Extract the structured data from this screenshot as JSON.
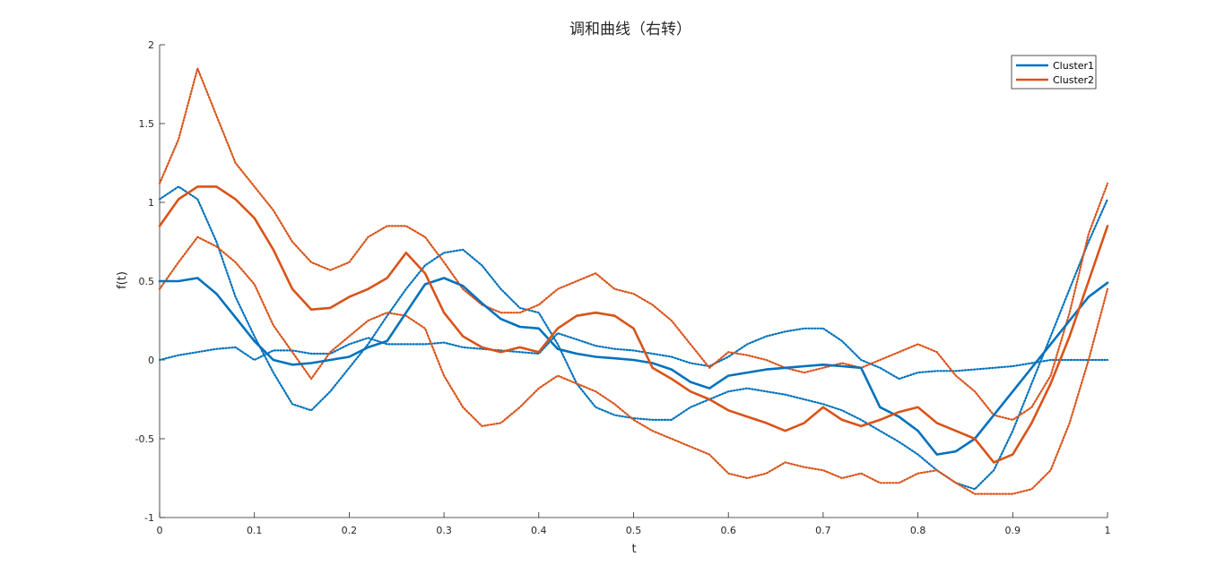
{
  "chart_data": {
    "type": "line",
    "title": "调和曲线（右转）",
    "xlabel": "t",
    "ylabel": "f(t)",
    "xlim": [
      0,
      1
    ],
    "ylim": [
      -1,
      2
    ],
    "xticks": [
      "0",
      "0.1",
      "0.2",
      "0.3",
      "0.4",
      "0.5",
      "0.6",
      "0.7",
      "0.8",
      "0.9",
      "1"
    ],
    "yticks": [
      "-1",
      "-0.5",
      "0",
      "0.5",
      "1",
      "1.5",
      "2"
    ],
    "grid": false,
    "legend_position": "top-right",
    "colors": {
      "cluster1": "#0072BD",
      "cluster2": "#D95319"
    },
    "series": [
      {
        "name": "Cluster1",
        "style": "solid",
        "color": "#0072BD",
        "x": [
          0,
          0.02,
          0.04,
          0.06,
          0.08,
          0.1,
          0.12,
          0.14,
          0.16,
          0.18,
          0.2,
          0.22,
          0.24,
          0.26,
          0.28,
          0.3,
          0.32,
          0.34,
          0.36,
          0.38,
          0.4,
          0.42,
          0.44,
          0.46,
          0.48,
          0.5,
          0.52,
          0.54,
          0.56,
          0.58,
          0.6,
          0.62,
          0.64,
          0.66,
          0.68,
          0.7,
          0.72,
          0.74,
          0.76,
          0.78,
          0.8,
          0.82,
          0.84,
          0.86,
          0.88,
          0.9,
          0.92,
          0.94,
          0.96,
          0.98,
          1.0
        ],
        "y": [
          0.5,
          0.5,
          0.52,
          0.42,
          0.27,
          0.12,
          0.0,
          -0.03,
          -0.02,
          0.0,
          0.02,
          0.08,
          0.12,
          0.3,
          0.48,
          0.52,
          0.47,
          0.36,
          0.26,
          0.21,
          0.2,
          0.07,
          0.04,
          0.02,
          0.01,
          0.0,
          -0.02,
          -0.06,
          -0.14,
          -0.18,
          -0.1,
          -0.08,
          -0.06,
          -0.05,
          -0.04,
          -0.03,
          -0.04,
          -0.05,
          -0.3,
          -0.36,
          -0.45,
          -0.6,
          -0.58,
          -0.5,
          -0.35,
          -0.2,
          -0.05,
          0.1,
          0.25,
          0.4,
          0.49
        ]
      },
      {
        "name": "",
        "style": "dotted",
        "color": "#0072BD",
        "x": [
          0,
          0.02,
          0.04,
          0.06,
          0.08,
          0.1,
          0.12,
          0.14,
          0.16,
          0.18,
          0.2,
          0.22,
          0.24,
          0.26,
          0.28,
          0.3,
          0.32,
          0.34,
          0.36,
          0.38,
          0.4,
          0.42,
          0.44,
          0.46,
          0.48,
          0.5,
          0.52,
          0.54,
          0.56,
          0.58,
          0.6,
          0.62,
          0.64,
          0.66,
          0.68,
          0.7,
          0.72,
          0.74,
          0.76,
          0.78,
          0.8,
          0.82,
          0.84,
          0.86,
          0.88,
          0.9,
          0.92,
          0.94,
          0.96,
          0.98,
          1.0
        ],
        "y": [
          1.02,
          1.1,
          1.02,
          0.75,
          0.4,
          0.15,
          -0.08,
          -0.28,
          -0.32,
          -0.2,
          -0.05,
          0.1,
          0.28,
          0.45,
          0.6,
          0.68,
          0.7,
          0.6,
          0.45,
          0.33,
          0.3,
          0.1,
          -0.15,
          -0.3,
          -0.35,
          -0.37,
          -0.38,
          -0.38,
          -0.3,
          -0.25,
          -0.2,
          -0.18,
          -0.2,
          -0.22,
          -0.25,
          -0.28,
          -0.32,
          -0.38,
          -0.45,
          -0.52,
          -0.6,
          -0.7,
          -0.78,
          -0.82,
          -0.7,
          -0.45,
          -0.15,
          0.15,
          0.45,
          0.75,
          1.02
        ]
      },
      {
        "name": "",
        "style": "dotted",
        "color": "#0072BD",
        "x": [
          0,
          0.02,
          0.04,
          0.06,
          0.08,
          0.1,
          0.12,
          0.14,
          0.16,
          0.18,
          0.2,
          0.22,
          0.24,
          0.26,
          0.28,
          0.3,
          0.32,
          0.34,
          0.36,
          0.38,
          0.4,
          0.42,
          0.44,
          0.46,
          0.48,
          0.5,
          0.52,
          0.54,
          0.56,
          0.58,
          0.6,
          0.62,
          0.64,
          0.66,
          0.68,
          0.7,
          0.72,
          0.74,
          0.76,
          0.78,
          0.8,
          0.82,
          0.84,
          0.86,
          0.88,
          0.9,
          0.92,
          0.94,
          0.96,
          0.98,
          1.0
        ],
        "y": [
          0.0,
          0.03,
          0.05,
          0.07,
          0.08,
          0.0,
          0.06,
          0.06,
          0.04,
          0.04,
          0.1,
          0.14,
          0.1,
          0.1,
          0.1,
          0.11,
          0.08,
          0.07,
          0.06,
          0.05,
          0.04,
          0.17,
          0.13,
          0.09,
          0.07,
          0.06,
          0.04,
          0.02,
          -0.02,
          -0.04,
          0.02,
          0.1,
          0.15,
          0.18,
          0.2,
          0.2,
          0.12,
          0.0,
          -0.05,
          -0.12,
          -0.08,
          -0.07,
          -0.07,
          -0.06,
          -0.05,
          -0.04,
          -0.02,
          0.0,
          0.0,
          0.0,
          0.0
        ]
      },
      {
        "name": "Cluster2",
        "style": "solid",
        "color": "#D95319",
        "x": [
          0,
          0.02,
          0.04,
          0.06,
          0.08,
          0.1,
          0.12,
          0.14,
          0.16,
          0.18,
          0.2,
          0.22,
          0.24,
          0.26,
          0.28,
          0.3,
          0.32,
          0.34,
          0.36,
          0.38,
          0.4,
          0.42,
          0.44,
          0.46,
          0.48,
          0.5,
          0.52,
          0.54,
          0.56,
          0.58,
          0.6,
          0.62,
          0.64,
          0.66,
          0.68,
          0.7,
          0.72,
          0.74,
          0.76,
          0.78,
          0.8,
          0.82,
          0.84,
          0.86,
          0.88,
          0.9,
          0.92,
          0.94,
          0.96,
          0.98,
          1.0
        ],
        "y": [
          0.85,
          1.02,
          1.1,
          1.1,
          1.02,
          0.9,
          0.7,
          0.45,
          0.32,
          0.33,
          0.4,
          0.45,
          0.52,
          0.68,
          0.55,
          0.3,
          0.15,
          0.08,
          0.05,
          0.08,
          0.05,
          0.2,
          0.28,
          0.3,
          0.28,
          0.2,
          -0.05,
          -0.12,
          -0.2,
          -0.25,
          -0.32,
          -0.36,
          -0.4,
          -0.45,
          -0.4,
          -0.3,
          -0.38,
          -0.42,
          -0.38,
          -0.33,
          -0.3,
          -0.4,
          -0.45,
          -0.5,
          -0.65,
          -0.6,
          -0.4,
          -0.15,
          0.15,
          0.5,
          0.85
        ]
      },
      {
        "name": "",
        "style": "dotted",
        "color": "#D95319",
        "x": [
          0,
          0.02,
          0.04,
          0.06,
          0.08,
          0.1,
          0.12,
          0.14,
          0.16,
          0.18,
          0.2,
          0.22,
          0.24,
          0.26,
          0.28,
          0.3,
          0.32,
          0.34,
          0.36,
          0.38,
          0.4,
          0.42,
          0.44,
          0.46,
          0.48,
          0.5,
          0.52,
          0.54,
          0.56,
          0.58,
          0.6,
          0.62,
          0.64,
          0.66,
          0.68,
          0.7,
          0.72,
          0.74,
          0.76,
          0.78,
          0.8,
          0.82,
          0.84,
          0.86,
          0.88,
          0.9,
          0.92,
          0.94,
          0.96,
          0.98,
          1.0
        ],
        "y": [
          1.12,
          1.4,
          1.85,
          1.55,
          1.25,
          1.1,
          0.95,
          0.75,
          0.62,
          0.57,
          0.62,
          0.78,
          0.85,
          0.85,
          0.78,
          0.62,
          0.45,
          0.35,
          0.3,
          0.3,
          0.35,
          0.45,
          0.5,
          0.55,
          0.45,
          0.42,
          0.35,
          0.25,
          0.1,
          -0.05,
          0.05,
          0.03,
          0.0,
          -0.05,
          -0.08,
          -0.05,
          -0.02,
          -0.05,
          0.0,
          0.05,
          0.1,
          0.05,
          -0.1,
          -0.2,
          -0.35,
          -0.38,
          -0.3,
          -0.1,
          0.3,
          0.8,
          1.12
        ]
      },
      {
        "name": "",
        "style": "dotted",
        "color": "#D95319",
        "x": [
          0,
          0.02,
          0.04,
          0.06,
          0.08,
          0.1,
          0.12,
          0.14,
          0.16,
          0.18,
          0.2,
          0.22,
          0.24,
          0.26,
          0.28,
          0.3,
          0.32,
          0.34,
          0.36,
          0.38,
          0.4,
          0.42,
          0.44,
          0.46,
          0.48,
          0.5,
          0.52,
          0.54,
          0.56,
          0.58,
          0.6,
          0.62,
          0.64,
          0.66,
          0.68,
          0.7,
          0.72,
          0.74,
          0.76,
          0.78,
          0.8,
          0.82,
          0.84,
          0.86,
          0.88,
          0.9,
          0.92,
          0.94,
          0.96,
          0.98,
          1.0
        ],
        "y": [
          0.45,
          0.62,
          0.78,
          0.72,
          0.62,
          0.48,
          0.22,
          0.05,
          -0.12,
          0.05,
          0.15,
          0.25,
          0.3,
          0.28,
          0.2,
          -0.1,
          -0.3,
          -0.42,
          -0.4,
          -0.3,
          -0.18,
          -0.1,
          -0.15,
          -0.2,
          -0.28,
          -0.38,
          -0.45,
          -0.5,
          -0.55,
          -0.6,
          -0.72,
          -0.75,
          -0.72,
          -0.65,
          -0.68,
          -0.7,
          -0.75,
          -0.72,
          -0.78,
          -0.78,
          -0.72,
          -0.7,
          -0.78,
          -0.85,
          -0.85,
          -0.85,
          -0.82,
          -0.7,
          -0.4,
          0.0,
          0.45
        ]
      }
    ]
  }
}
